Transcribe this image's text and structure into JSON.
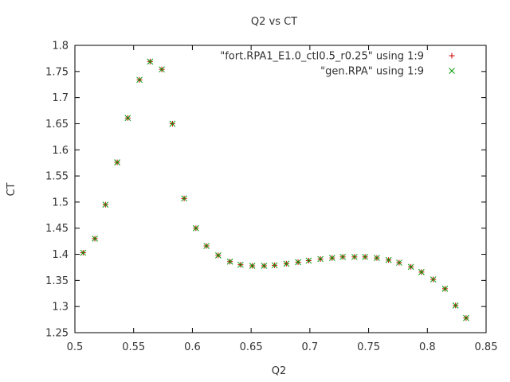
{
  "chart_data": {
    "type": "scatter",
    "title": "Q2 vs CT",
    "xlabel": "Q2",
    "ylabel": "CT",
    "xlim": [
      0.5,
      0.85
    ],
    "ylim": [
      1.25,
      1.8
    ],
    "xticks": [
      "0.5",
      "0.55",
      "0.6",
      "0.65",
      "0.7",
      "0.75",
      "0.8",
      "0.85"
    ],
    "yticks": [
      "1.25",
      "1.3",
      "1.35",
      "1.4",
      "1.45",
      "1.5",
      "1.55",
      "1.6",
      "1.65",
      "1.7",
      "1.75",
      "1.8"
    ],
    "grid": false,
    "legend_position": "top-right",
    "x": [
      0.507,
      0.517,
      0.526,
      0.536,
      0.545,
      0.555,
      0.564,
      0.574,
      0.583,
      0.593,
      0.603,
      0.612,
      0.622,
      0.632,
      0.641,
      0.651,
      0.661,
      0.67,
      0.68,
      0.69,
      0.699,
      0.709,
      0.719,
      0.728,
      0.738,
      0.747,
      0.757,
      0.767,
      0.776,
      0.786,
      0.795,
      0.805,
      0.815,
      0.824,
      0.833
    ],
    "series": [
      {
        "name": "\"fort.RPA1_E1.0_ctl0.5_r0.25\" using 1:9",
        "color": "#cc0000",
        "marker": "plus",
        "y": [
          1.403,
          1.43,
          1.495,
          1.576,
          1.661,
          1.734,
          1.769,
          1.754,
          1.65,
          1.507,
          1.45,
          1.416,
          1.398,
          1.386,
          1.38,
          1.378,
          1.378,
          1.379,
          1.382,
          1.385,
          1.388,
          1.391,
          1.393,
          1.395,
          1.395,
          1.395,
          1.393,
          1.389,
          1.384,
          1.376,
          1.366,
          1.352,
          1.334,
          1.302,
          1.278
        ]
      },
      {
        "name": "\"gen.RPA\" using 1:9",
        "color": "#009900",
        "marker": "cross",
        "y": [
          1.403,
          1.43,
          1.495,
          1.576,
          1.661,
          1.734,
          1.769,
          1.754,
          1.65,
          1.507,
          1.45,
          1.416,
          1.398,
          1.386,
          1.38,
          1.378,
          1.378,
          1.379,
          1.382,
          1.385,
          1.388,
          1.391,
          1.393,
          1.395,
          1.395,
          1.395,
          1.393,
          1.389,
          1.384,
          1.376,
          1.366,
          1.352,
          1.334,
          1.302,
          1.278
        ]
      }
    ]
  }
}
